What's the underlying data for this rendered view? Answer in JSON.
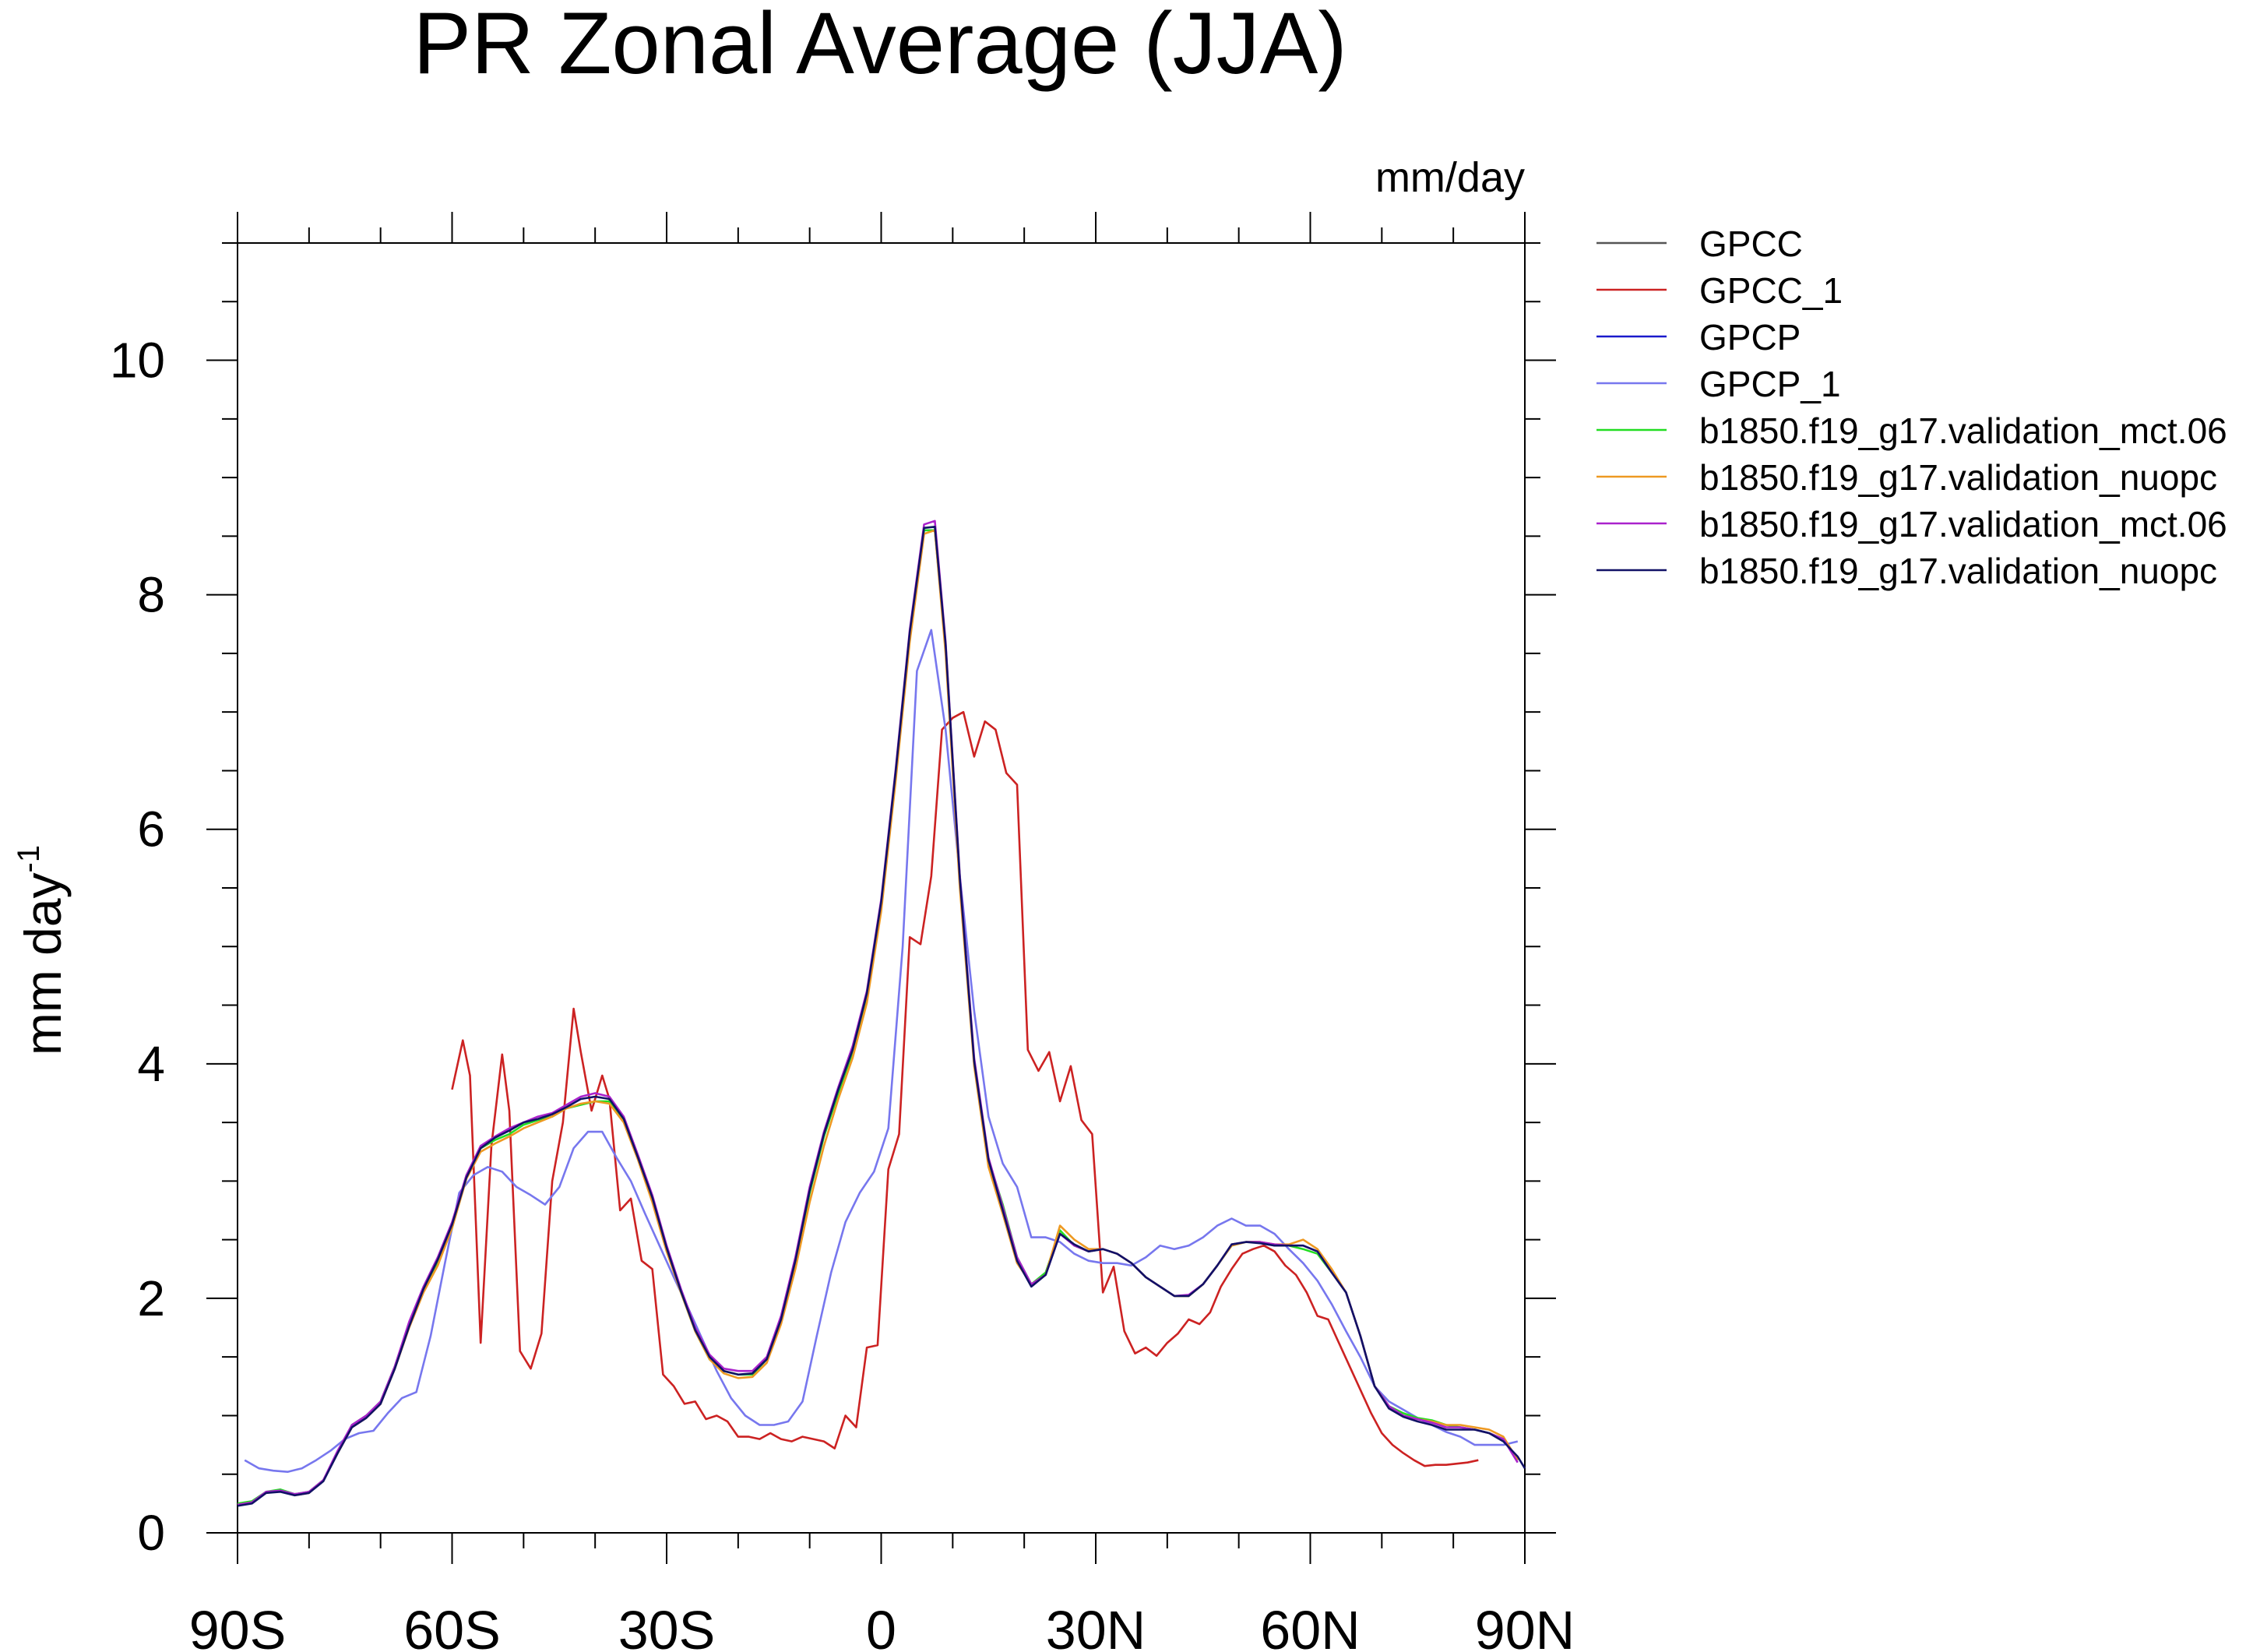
{
  "chart_data": {
    "type": "line",
    "title": "PR Zonal Average (JJA)",
    "units_label": "mm/day",
    "ylabel": "mm day",
    "ylabel_sup": "-1",
    "xlabel": "",
    "xlim": [
      -90,
      90
    ],
    "ylim": [
      0,
      11
    ],
    "x_ticks": [
      {
        "value": -90,
        "label": "90S"
      },
      {
        "value": -60,
        "label": "60S"
      },
      {
        "value": -30,
        "label": "30S"
      },
      {
        "value": 0,
        "label": "0"
      },
      {
        "value": 30,
        "label": "30N"
      },
      {
        "value": 60,
        "label": "60N"
      },
      {
        "value": 90,
        "label": "90N"
      }
    ],
    "y_ticks": [
      {
        "value": 0,
        "label": "0"
      },
      {
        "value": 2,
        "label": "2"
      },
      {
        "value": 4,
        "label": "4"
      },
      {
        "value": 6,
        "label": "6"
      },
      {
        "value": 8,
        "label": "8"
      },
      {
        "value": 10,
        "label": "10"
      }
    ],
    "legend_position": "right, outside top",
    "grid": false,
    "series": [
      {
        "name": "GPCC",
        "color": "#555555",
        "x": [],
        "y": []
      },
      {
        "name": "GPCC_1",
        "color": "#cc2222",
        "x": [
          -60,
          -58.5,
          -57.5,
          -56,
          -54.5,
          -53,
          -52,
          -50.5,
          -49,
          -47.5,
          -46,
          -44.5,
          -43,
          -42,
          -40.5,
          -39,
          -38,
          -36.5,
          -35,
          -33.5,
          -32,
          -30.5,
          -29,
          -27.5,
          -26,
          -24.5,
          -23,
          -21.5,
          -20,
          -18.5,
          -17,
          -15.5,
          -14,
          -12.5,
          -11,
          -9.5,
          -8,
          -6.5,
          -5,
          -3.5,
          -2,
          -0.5,
          1,
          2.5,
          4,
          5.5,
          7,
          8.5,
          10,
          11.5,
          13,
          14.5,
          16,
          17.5,
          19,
          20.5,
          22,
          23.5,
          25,
          26.5,
          28,
          29.5,
          31,
          32.5,
          34,
          35.5,
          37,
          38.5,
          40,
          41.5,
          43,
          44.5,
          46,
          47.5,
          49,
          50.5,
          52,
          53.5,
          55,
          56.5,
          58,
          59.5,
          61,
          62.5,
          64,
          65.5,
          67,
          68.5,
          70,
          71.5,
          73,
          74.5,
          76,
          77.5,
          79,
          80.5,
          82,
          83.5
        ],
        "y": [
          3.78,
          4.2,
          3.9,
          1.62,
          3.3,
          4.08,
          3.6,
          1.55,
          1.4,
          1.7,
          3.0,
          3.5,
          4.47,
          4.1,
          3.6,
          3.9,
          3.7,
          2.75,
          2.85,
          2.32,
          2.25,
          1.35,
          1.25,
          1.1,
          1.12,
          0.97,
          1.0,
          0.95,
          0.82,
          0.82,
          0.8,
          0.85,
          0.8,
          0.78,
          0.82,
          0.8,
          0.78,
          0.72,
          1.0,
          0.9,
          1.58,
          1.6,
          3.1,
          3.4,
          5.08,
          5.02,
          5.6,
          6.85,
          6.95,
          7.0,
          6.62,
          6.92,
          6.85,
          6.48,
          6.38,
          4.12,
          3.94,
          4.1,
          3.68,
          3.98,
          3.52,
          3.4,
          2.05,
          2.27,
          1.72,
          1.53,
          1.58,
          1.51,
          1.62,
          1.7,
          1.82,
          1.78,
          1.88,
          2.1,
          2.25,
          2.38,
          2.42,
          2.45,
          2.4,
          2.28,
          2.2,
          2.05,
          1.85,
          1.82,
          1.62,
          1.42,
          1.22,
          1.02,
          0.85,
          0.75,
          0.68,
          0.62,
          0.57,
          0.58,
          0.58,
          0.59,
          0.6,
          0.62
        ]
      },
      {
        "name": "GPCP",
        "color": "#1a1acc",
        "x": [],
        "y": []
      },
      {
        "name": "GPCP_1",
        "color": "#7777ee",
        "x": [
          -89,
          -87,
          -85,
          -83,
          -81,
          -79,
          -77,
          -75,
          -73,
          -71,
          -69,
          -67,
          -65,
          -63,
          -61,
          -59,
          -57,
          -55,
          -53,
          -51,
          -49,
          -47,
          -45,
          -43,
          -41,
          -39,
          -37,
          -35,
          -33,
          -31,
          -29,
          -27,
          -25,
          -23,
          -21,
          -19,
          -17,
          -15,
          -13,
          -11,
          -9,
          -7,
          -5,
          -3,
          -1,
          1,
          3,
          5,
          7,
          9,
          11,
          13,
          15,
          17,
          19,
          21,
          23,
          25,
          27,
          29,
          31,
          33,
          35,
          37,
          39,
          41,
          43,
          45,
          47,
          49,
          51,
          53,
          55,
          57,
          59,
          61,
          63,
          65,
          67,
          69,
          71,
          73,
          75,
          77,
          79,
          81,
          83,
          85,
          87,
          89
        ],
        "y": [
          0.62,
          0.55,
          0.53,
          0.52,
          0.55,
          0.62,
          0.7,
          0.8,
          0.85,
          0.87,
          1.02,
          1.15,
          1.2,
          1.68,
          2.3,
          2.9,
          3.05,
          3.12,
          3.08,
          2.95,
          2.88,
          2.8,
          2.95,
          3.28,
          3.42,
          3.42,
          3.2,
          3.0,
          2.72,
          2.45,
          2.18,
          1.92,
          1.65,
          1.38,
          1.15,
          1.0,
          0.92,
          0.92,
          0.95,
          1.12,
          1.68,
          2.22,
          2.65,
          2.9,
          3.08,
          3.45,
          5.0,
          7.35,
          7.7,
          6.85,
          5.6,
          4.45,
          3.55,
          3.15,
          2.95,
          2.52,
          2.52,
          2.48,
          2.38,
          2.32,
          2.3,
          2.3,
          2.28,
          2.35,
          2.45,
          2.42,
          2.45,
          2.52,
          2.62,
          2.68,
          2.62,
          2.62,
          2.55,
          2.42,
          2.3,
          2.15,
          1.95,
          1.72,
          1.5,
          1.25,
          1.12,
          1.05,
          0.98,
          0.92,
          0.86,
          0.82,
          0.75,
          0.75,
          0.75,
          0.78
        ]
      },
      {
        "name": "b1850.f19_g17.validation_mct.06",
        "color": "#22dd22",
        "x": [
          -90,
          -88,
          -86,
          -84,
          -82,
          -80,
          -78,
          -76,
          -74,
          -72,
          -70,
          -68,
          -66,
          -64,
          -62,
          -60,
          -58,
          -56,
          -54,
          -52,
          -50,
          -48,
          -46,
          -44,
          -42,
          -40,
          -38,
          -36,
          -34,
          -32,
          -30,
          -28,
          -26,
          -24,
          -22,
          -20,
          -18,
          -16,
          -14,
          -12,
          -10,
          -8,
          -6,
          -4,
          -2,
          0,
          2,
          4,
          6,
          7.5,
          9,
          11,
          13,
          15,
          17,
          19,
          21,
          23,
          25,
          27,
          29,
          31,
          33,
          35,
          37,
          39,
          41,
          43,
          45,
          47,
          49,
          51,
          53,
          55,
          57,
          59,
          61,
          63,
          65,
          67,
          69,
          71,
          73,
          75,
          77,
          79,
          81,
          83,
          85,
          87,
          89
        ],
        "y": [
          0.25,
          0.27,
          0.35,
          0.37,
          0.33,
          0.35,
          0.45,
          0.68,
          0.92,
          1.0,
          1.12,
          1.42,
          1.78,
          2.08,
          2.3,
          2.6,
          3.05,
          3.28,
          3.35,
          3.4,
          3.48,
          3.52,
          3.55,
          3.62,
          3.65,
          3.68,
          3.68,
          3.52,
          3.2,
          2.85,
          2.42,
          2.05,
          1.72,
          1.48,
          1.38,
          1.35,
          1.35,
          1.48,
          1.82,
          2.3,
          2.9,
          3.38,
          3.75,
          4.1,
          4.58,
          5.35,
          6.45,
          7.65,
          8.55,
          8.55,
          7.55,
          5.55,
          4.02,
          3.18,
          2.8,
          2.35,
          2.12,
          2.22,
          2.58,
          2.45,
          2.4,
          2.42,
          2.38,
          2.3,
          2.18,
          2.1,
          2.02,
          2.02,
          2.12,
          2.28,
          2.45,
          2.48,
          2.48,
          2.45,
          2.45,
          2.42,
          2.38,
          2.22,
          2.05,
          1.68,
          1.25,
          1.08,
          1.02,
          0.98,
          0.96,
          0.92,
          0.9,
          0.88,
          0.85,
          0.8,
          0.62
        ]
      },
      {
        "name": "b1850.f19_g17.validation_nuopc",
        "color": "#ee9922",
        "x": [
          -90,
          -88,
          -86,
          -84,
          -82,
          -80,
          -78,
          -76,
          -74,
          -72,
          -70,
          -68,
          -66,
          -64,
          -62,
          -60,
          -58,
          -56,
          -54,
          -52,
          -50,
          -48,
          -46,
          -44,
          -42,
          -40,
          -38,
          -36,
          -34,
          -32,
          -30,
          -28,
          -26,
          -24,
          -22,
          -20,
          -18,
          -16,
          -14,
          -12,
          -10,
          -8,
          -6,
          -4,
          -2,
          0,
          2,
          4,
          6,
          7.5,
          9,
          11,
          13,
          15,
          17,
          19,
          21,
          23,
          25,
          27,
          29,
          31,
          33,
          35,
          37,
          39,
          41,
          43,
          45,
          47,
          49,
          51,
          53,
          55,
          57,
          59,
          61,
          63,
          65,
          67,
          69,
          71,
          73,
          75,
          77,
          79,
          81,
          83,
          85,
          87,
          89
        ],
        "y": [
          0.24,
          0.26,
          0.34,
          0.36,
          0.32,
          0.34,
          0.45,
          0.68,
          0.9,
          0.98,
          1.1,
          1.4,
          1.75,
          2.05,
          2.28,
          2.6,
          3.02,
          3.25,
          3.32,
          3.38,
          3.45,
          3.5,
          3.55,
          3.62,
          3.66,
          3.68,
          3.66,
          3.5,
          3.18,
          2.82,
          2.4,
          2.05,
          1.72,
          1.48,
          1.36,
          1.32,
          1.33,
          1.45,
          1.78,
          2.25,
          2.82,
          3.3,
          3.7,
          4.05,
          4.52,
          5.3,
          6.4,
          7.6,
          8.52,
          8.55,
          7.5,
          5.5,
          3.98,
          3.12,
          2.72,
          2.3,
          2.12,
          2.2,
          2.62,
          2.5,
          2.42,
          2.42,
          2.38,
          2.3,
          2.18,
          2.1,
          2.02,
          2.02,
          2.12,
          2.28,
          2.45,
          2.48,
          2.48,
          2.46,
          2.46,
          2.5,
          2.42,
          2.25,
          2.05,
          1.68,
          1.25,
          1.08,
          1.0,
          0.97,
          0.95,
          0.92,
          0.92,
          0.9,
          0.88,
          0.82,
          0.62
        ]
      },
      {
        "name": "b1850.f19_g17.validation_mct.06",
        "color": "#aa22cc",
        "x": [
          -90,
          -88,
          -86,
          -84,
          -82,
          -80,
          -78,
          -76,
          -74,
          -72,
          -70,
          -68,
          -66,
          -64,
          -62,
          -60,
          -58,
          -56,
          -54,
          -52,
          -50,
          -48,
          -46,
          -44,
          -42,
          -40,
          -38,
          -36,
          -34,
          -32,
          -30,
          -28,
          -26,
          -24,
          -22,
          -20,
          -18,
          -16,
          -14,
          -12,
          -10,
          -8,
          -6,
          -4,
          -2,
          0,
          2,
          4,
          6,
          7.5,
          9,
          11,
          13,
          15,
          17,
          19,
          21,
          23,
          25,
          27,
          29,
          31,
          33,
          35,
          37,
          39,
          41,
          43,
          45,
          47,
          49,
          51,
          53,
          55,
          57,
          59,
          61,
          63,
          65,
          67,
          69,
          71,
          73,
          75,
          77,
          79,
          81,
          83,
          85,
          87,
          89
        ],
        "y": [
          0.24,
          0.26,
          0.35,
          0.36,
          0.33,
          0.35,
          0.45,
          0.7,
          0.92,
          1.0,
          1.12,
          1.42,
          1.8,
          2.1,
          2.35,
          2.65,
          3.05,
          3.3,
          3.38,
          3.45,
          3.5,
          3.55,
          3.58,
          3.65,
          3.72,
          3.75,
          3.72,
          3.55,
          3.22,
          2.88,
          2.45,
          2.08,
          1.75,
          1.52,
          1.4,
          1.38,
          1.38,
          1.5,
          1.85,
          2.35,
          2.95,
          3.42,
          3.8,
          4.15,
          4.62,
          5.4,
          6.5,
          7.7,
          8.6,
          8.63,
          7.6,
          5.6,
          4.05,
          3.2,
          2.78,
          2.35,
          2.12,
          2.2,
          2.55,
          2.45,
          2.4,
          2.42,
          2.38,
          2.3,
          2.18,
          2.1,
          2.02,
          2.03,
          2.12,
          2.28,
          2.46,
          2.48,
          2.48,
          2.46,
          2.45,
          2.45,
          2.4,
          2.22,
          2.05,
          1.68,
          1.25,
          1.08,
          1.0,
          0.97,
          0.94,
          0.9,
          0.9,
          0.88,
          0.85,
          0.8,
          0.6
        ]
      },
      {
        "name": "b1850.f19_g17.validation_nuopc",
        "color": "#111166",
        "x": [
          -90,
          -88,
          -86,
          -84,
          -82,
          -80,
          -78,
          -76,
          -74,
          -72,
          -70,
          -68,
          -66,
          -64,
          -62,
          -60,
          -58,
          -56,
          -54,
          -52,
          -50,
          -48,
          -46,
          -44,
          -42,
          -40,
          -38,
          -36,
          -34,
          -32,
          -30,
          -28,
          -26,
          -24,
          -22,
          -20,
          -18,
          -16,
          -14,
          -12,
          -10,
          -8,
          -6,
          -4,
          -2,
          0,
          2,
          4,
          6,
          7.5,
          9,
          11,
          13,
          15,
          17,
          19,
          21,
          23,
          25,
          27,
          29,
          31,
          33,
          35,
          37,
          39,
          41,
          43,
          45,
          47,
          49,
          51,
          53,
          55,
          57,
          59,
          61,
          63,
          65,
          67,
          69,
          71,
          73,
          75,
          77,
          79,
          81,
          83,
          85,
          87,
          89,
          90
        ],
        "y": [
          0.23,
          0.25,
          0.34,
          0.35,
          0.32,
          0.34,
          0.44,
          0.68,
          0.9,
          0.98,
          1.1,
          1.4,
          1.76,
          2.08,
          2.33,
          2.63,
          3.03,
          3.28,
          3.37,
          3.43,
          3.5,
          3.53,
          3.57,
          3.63,
          3.7,
          3.72,
          3.7,
          3.53,
          3.2,
          2.86,
          2.43,
          2.06,
          1.73,
          1.5,
          1.38,
          1.35,
          1.36,
          1.48,
          1.82,
          2.32,
          2.92,
          3.4,
          3.78,
          4.12,
          4.6,
          5.38,
          6.48,
          7.68,
          8.57,
          8.58,
          7.58,
          5.58,
          4.02,
          3.18,
          2.75,
          2.32,
          2.1,
          2.2,
          2.55,
          2.46,
          2.4,
          2.42,
          2.38,
          2.3,
          2.18,
          2.1,
          2.02,
          2.02,
          2.12,
          2.28,
          2.46,
          2.48,
          2.47,
          2.45,
          2.45,
          2.45,
          2.4,
          2.22,
          2.05,
          1.68,
          1.25,
          1.06,
          0.99,
          0.95,
          0.92,
          0.88,
          0.88,
          0.88,
          0.85,
          0.78,
          0.65,
          0.55
        ]
      }
    ]
  }
}
